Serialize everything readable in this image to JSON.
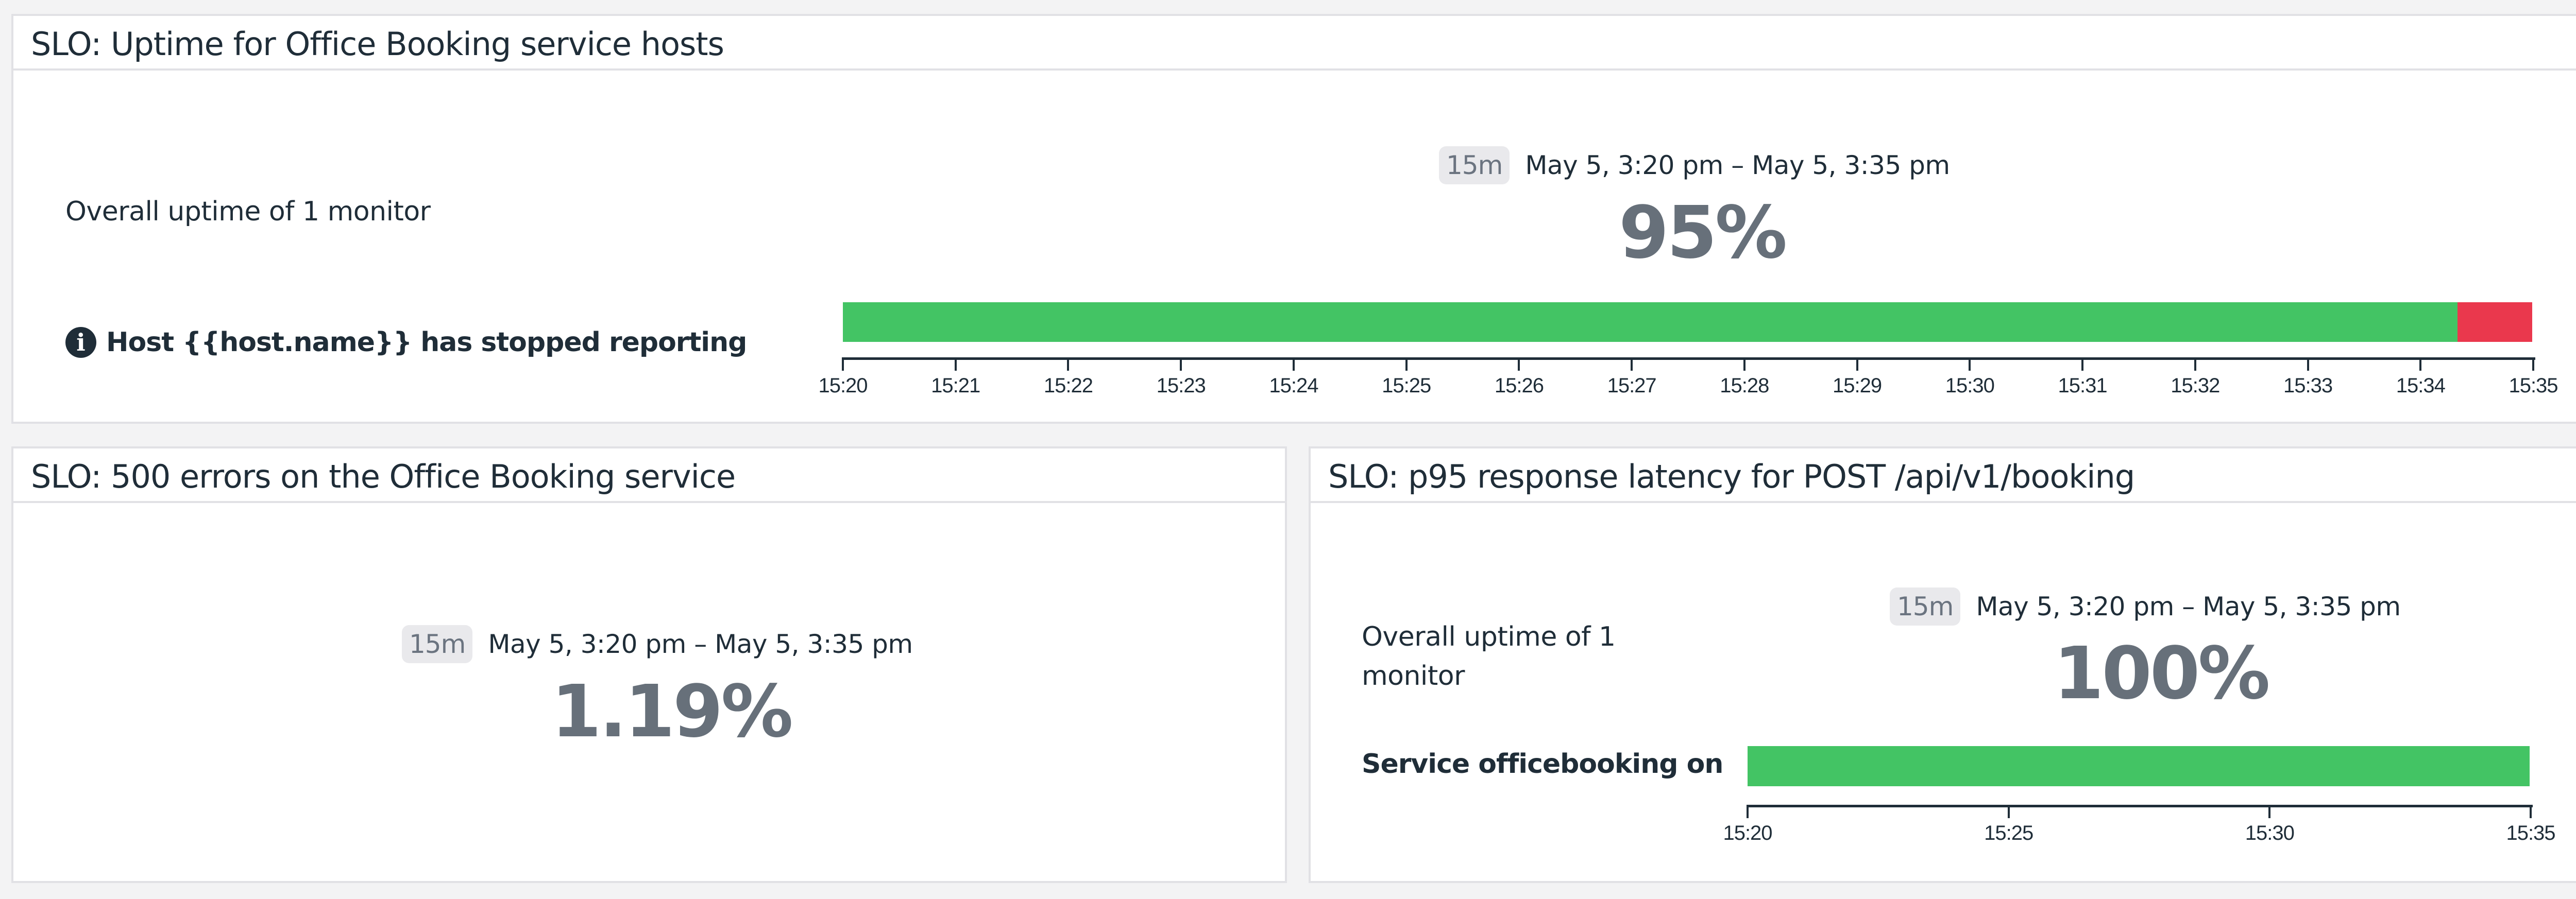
{
  "colors": {
    "ok": "#43c464",
    "breach": "#ea384d",
    "value": "#67707a",
    "text": "#1f2d38"
  },
  "panels": [
    {
      "title": "SLO: Uptime for Office Booking service hosts",
      "summary_label": "Overall uptime of 1 monitor",
      "monitor_name": "Host {{host.name}} has stopped reporting",
      "monitor_icon": "info-circle-icon",
      "time_badge": "15m",
      "time_range": "May 5, 3:20 pm – May 5, 3:35 pm",
      "value": "95%"
    },
    {
      "title": "SLO: 500 errors on the Office Booking service",
      "time_badge": "15m",
      "time_range": "May 5, 3:20 pm – May 5, 3:35 pm",
      "value": "1.19%"
    },
    {
      "title": "SLO: p95 response latency for POST /api/v1/booking",
      "summary_label_line1": "Overall uptime of 1",
      "summary_label_line2": "monitor",
      "monitor_name": "Service officebooking on",
      "time_badge": "15m",
      "time_range": "May 5, 3:20 pm – May 5, 3:35 pm",
      "value": "100%"
    }
  ],
  "chart_data": [
    {
      "type": "bar",
      "title": "Uptime for Office Booking service hosts",
      "orientation": "horizontal-timeline",
      "x_ticks": [
        "15:20",
        "15:21",
        "15:22",
        "15:23",
        "15:24",
        "15:25",
        "15:26",
        "15:27",
        "15:28",
        "15:29",
        "15:30",
        "15:31",
        "15:32",
        "15:33",
        "15:34",
        "15:35"
      ],
      "segments": [
        {
          "status": "ok",
          "start": "15:20",
          "end": "15:34.3",
          "color": "#43c464"
        },
        {
          "status": "down",
          "start": "15:34.3",
          "end": "15:35",
          "color": "#ea384d"
        }
      ],
      "uptime_percent": 95
    },
    {
      "type": "bar",
      "title": "p95 response latency for POST /api/v1/booking",
      "orientation": "horizontal-timeline",
      "x_ticks": [
        "15:20",
        "15:25",
        "15:30",
        "15:35"
      ],
      "segments": [
        {
          "status": "ok",
          "start": "15:20",
          "end": "15:35",
          "color": "#43c464"
        }
      ],
      "uptime_percent": 100
    }
  ]
}
